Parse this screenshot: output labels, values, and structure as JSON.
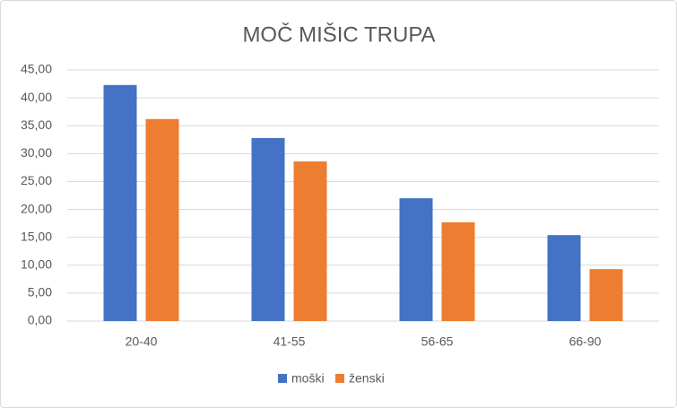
{
  "chart_data": {
    "type": "bar",
    "title": "MOČ MIŠIC TRUPA",
    "categories": [
      "20-40",
      "41-55",
      "56-65",
      "66-90"
    ],
    "series": [
      {
        "name": "moški",
        "color": "#4472c4",
        "values": [
          42.3,
          32.8,
          22.0,
          15.4
        ]
      },
      {
        "name": "ženski",
        "color": "#ed7d31",
        "values": [
          36.2,
          28.6,
          17.7,
          9.3
        ]
      }
    ],
    "ylim": [
      0,
      45
    ],
    "yticks": [
      {
        "value": 0,
        "label": "0,00"
      },
      {
        "value": 5,
        "label": "5,00"
      },
      {
        "value": 10,
        "label": "10,00"
      },
      {
        "value": 15,
        "label": "15,00"
      },
      {
        "value": 20,
        "label": "20,00"
      },
      {
        "value": 25,
        "label": "25,00"
      },
      {
        "value": 30,
        "label": "30,00"
      },
      {
        "value": 35,
        "label": "35,00"
      },
      {
        "value": 40,
        "label": "40,00"
      },
      {
        "value": 45,
        "label": "45,00"
      }
    ],
    "grid": true,
    "legend": "bottom"
  }
}
